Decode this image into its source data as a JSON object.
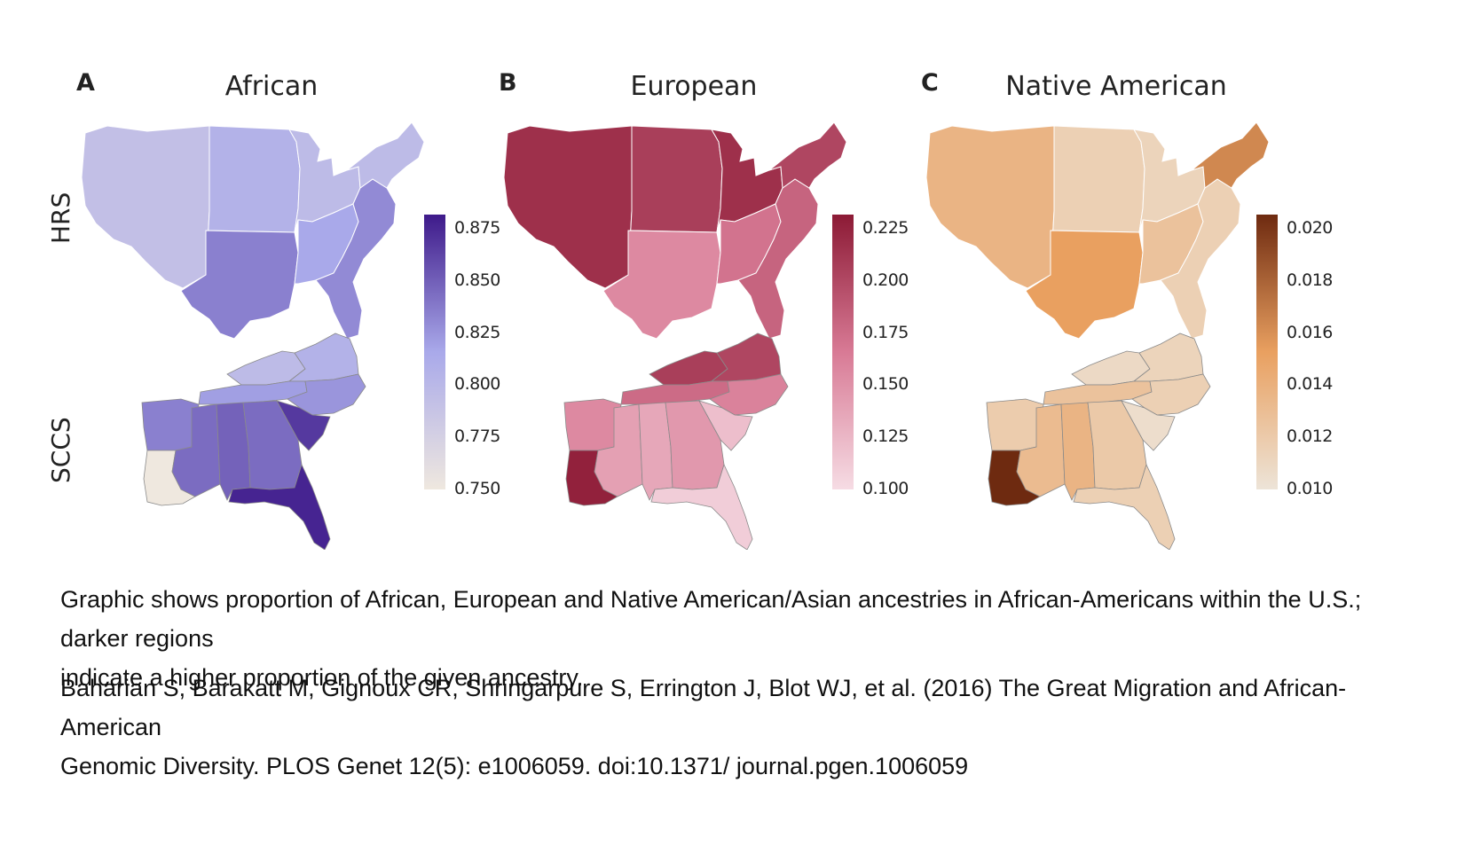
{
  "row_labels": {
    "top": "HRS",
    "bottom": "SCCS"
  },
  "panels": [
    {
      "letter": "A",
      "title": "African",
      "ticks": [
        "0.875",
        "0.850",
        "0.825",
        "0.800",
        "0.775",
        "0.750"
      ],
      "range": [
        0.75,
        0.89
      ],
      "colors": {
        "low": "#efe8df",
        "mid": "#a9a9ea",
        "high": "#3e1a8a"
      },
      "hrs": {
        "west": 0.795,
        "plains": 0.81,
        "midwest": 0.8,
        "south_central": 0.84,
        "south_east": 0.82,
        "atlantic": 0.835,
        "northeast": 0.8
      },
      "sccs": {
        "kentucky": 0.8,
        "virginia": 0.81,
        "tennessee": 0.825,
        "north_carolina": 0.83,
        "arkansas": 0.84,
        "louisiana": 0.75,
        "mississippi": 0.85,
        "alabama": 0.855,
        "georgia": 0.85,
        "south_carolina": 0.875,
        "florida": 0.885
      }
    },
    {
      "letter": "B",
      "title": "European",
      "ticks": [
        "0.225",
        "0.200",
        "0.175",
        "0.150",
        "0.125",
        "0.100"
      ],
      "range": [
        0.1,
        0.23
      ],
      "colors": {
        "low": "#f6dce4",
        "mid": "#d87a95",
        "high": "#8c1a35"
      },
      "hrs": {
        "west": 0.215,
        "plains": 0.205,
        "midwest": 0.215,
        "south_central": 0.155,
        "south_east": 0.17,
        "atlantic": 0.18,
        "northeast": 0.2
      },
      "sccs": {
        "kentucky": 0.205,
        "virginia": 0.2,
        "tennessee": 0.175,
        "north_carolina": 0.16,
        "arkansas": 0.155,
        "louisiana": 0.225,
        "mississippi": 0.14,
        "alabama": 0.135,
        "georgia": 0.145,
        "south_carolina": 0.12,
        "florida": 0.11
      }
    },
    {
      "letter": "C",
      "title": "Native American",
      "ticks": [
        "0.020",
        "0.018",
        "0.016",
        "0.014",
        "0.012",
        "0.010"
      ],
      "range": [
        0.01,
        0.02
      ],
      "colors": {
        "low": "#ede4d8",
        "mid": "#e9a060",
        "high": "#6e2a10"
      },
      "hrs": {
        "west": 0.0135,
        "plains": 0.0115,
        "midwest": 0.0112,
        "south_central": 0.015,
        "south_east": 0.0125,
        "atlantic": 0.0115,
        "northeast": 0.016
      },
      "sccs": {
        "kentucky": 0.0108,
        "virginia": 0.0112,
        "tennessee": 0.0125,
        "north_carolina": 0.0115,
        "arkansas": 0.0118,
        "louisiana": 0.02,
        "mississippi": 0.013,
        "alabama": 0.0135,
        "georgia": 0.012,
        "south_carolina": 0.0105,
        "florida": 0.0115
      }
    }
  ],
  "caption": {
    "line1": "Graphic shows proportion of African, European and Native American/Asian ancestries in African-Americans within the U.S.; darker regions",
    "line2": "indicate a higher proportion of the given ancestry.",
    "citation1": "Baharian S, Barakatt M, Gignoux CR, Shringarpure S, Errington J, Blot WJ, et al. (2016) The Great Migration and African-American",
    "citation2": "Genomic Diversity. PLOS Genet 12(5): e1006059. doi:10.1371/ journal.pgen.1006059"
  }
}
